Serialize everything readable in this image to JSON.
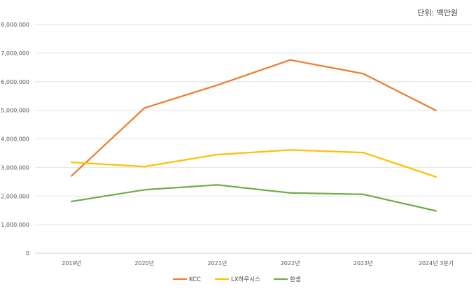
{
  "chart_data": {
    "type": "line",
    "title": "",
    "unit_note": "단위: 백만원",
    "xlabel": "",
    "ylabel": "",
    "categories": [
      "2019년",
      "2020년",
      "2021년",
      "2022년",
      "2023년",
      "2024년 3분기"
    ],
    "ylim": [
      0,
      8000000
    ],
    "yticks": [
      0,
      1000000,
      2000000,
      3000000,
      4000000,
      5000000,
      6000000,
      7000000,
      8000000
    ],
    "ytick_labels": [
      "0",
      "1,000,000",
      "2,000,000",
      "3,000,000",
      "4,000,000",
      "5,000,000",
      "6,000,000",
      "7,000,000",
      "8,000,000"
    ],
    "grid": true,
    "legend_position": "bottom",
    "series": [
      {
        "name": "KCC",
        "color": "#ED7D31",
        "values": [
          2700000,
          5080000,
          5880000,
          6760000,
          6280000,
          4990000
        ]
      },
      {
        "name": "LX하우시스",
        "color": "#FFC000",
        "values": [
          3180000,
          3030000,
          3450000,
          3610000,
          3520000,
          2670000
        ]
      },
      {
        "name": "한샘",
        "color": "#70AD47",
        "values": [
          1810000,
          2220000,
          2390000,
          2110000,
          2060000,
          1480000
        ]
      }
    ]
  }
}
